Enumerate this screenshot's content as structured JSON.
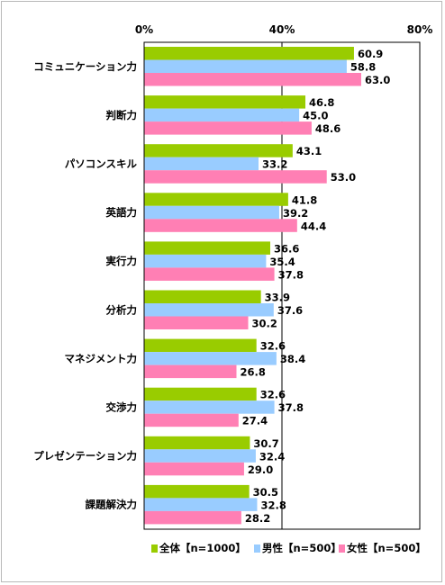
{
  "chart_data": {
    "type": "bar",
    "orientation": "horizontal",
    "xlim": [
      0,
      80
    ],
    "ticks": [
      "0%",
      "40%",
      "80%"
    ],
    "tick_values": [
      0,
      40,
      80
    ],
    "grid": true,
    "legend_position": "bottom-right",
    "categories": [
      "コミュニケーション力",
      "判断力",
      "パソコンスキル",
      "英語力",
      "実行力",
      "分析力",
      "マネジメント力",
      "交渉力",
      "プレゼンテーション力",
      "課題解決力"
    ],
    "series": [
      {
        "name": "全体【n=1000】",
        "color": "#99cc00",
        "values": [
          60.9,
          46.8,
          43.1,
          41.8,
          36.6,
          33.9,
          32.6,
          32.6,
          30.7,
          30.5
        ],
        "labels": [
          "60.9",
          "46.8",
          "43.1",
          "41.8",
          "36.6",
          "33.9",
          "32.6",
          "32.6",
          "30.7",
          "30.5"
        ]
      },
      {
        "name": "男性【n=500】",
        "color": "#99ccff",
        "values": [
          58.8,
          45.0,
          33.2,
          39.2,
          35.4,
          37.6,
          38.4,
          37.8,
          32.4,
          32.8
        ],
        "labels": [
          "58.8",
          "45.0",
          "33.2",
          "39.2",
          "35.4",
          "37.6",
          "38.4",
          "37.8",
          "32.4",
          "32.8"
        ]
      },
      {
        "name": "女性【n=500】",
        "color": "#ff7fb4",
        "values": [
          63.0,
          48.6,
          53.0,
          44.4,
          37.8,
          30.2,
          26.8,
          27.4,
          29.0,
          28.2
        ],
        "labels": [
          "63.0",
          "48.6",
          "53.0",
          "44.4",
          "37.8",
          "30.2",
          "26.8",
          "27.4",
          "29.0",
          "28.2"
        ]
      }
    ]
  }
}
